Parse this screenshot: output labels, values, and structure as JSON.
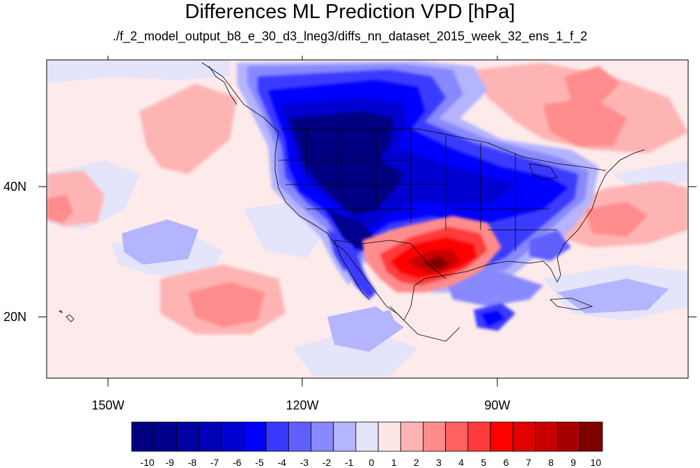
{
  "title": "Differences ML Prediction VPD [hPa]",
  "subtitle": "./f_2_model_output_b8_e_30_d3_lneg3/diffs_nn_dataset_2015_week_32_ens_1_f_2",
  "lat_labels": [
    "40N",
    "20N"
  ],
  "lon_labels": [
    "150W",
    "120W",
    "90W"
  ],
  "colorbar": {
    "labels": [
      "-10",
      "-9",
      "-8",
      "-7",
      "-6",
      "-5",
      "-4",
      "-3",
      "-2",
      "-1",
      "0",
      "1",
      "2",
      "3",
      "4",
      "5",
      "6",
      "7",
      "8",
      "9",
      "10"
    ],
    "colors": [
      "#000080",
      "#00008f",
      "#0000a3",
      "#0000b8",
      "#0000d1",
      "#0000ff",
      "#3a3aff",
      "#6060ff",
      "#8888ff",
      "#b4b4ff",
      "#e4e4fa",
      "#fde6e6",
      "#ffb4b4",
      "#ff8c8c",
      "#ff6060",
      "#ff3a3a",
      "#ff0000",
      "#e00000",
      "#c80000",
      "#a80000",
      "#800000"
    ]
  },
  "map_colors": {
    "ocean_base": "#fdeaea",
    "land_border": "#000000"
  }
}
